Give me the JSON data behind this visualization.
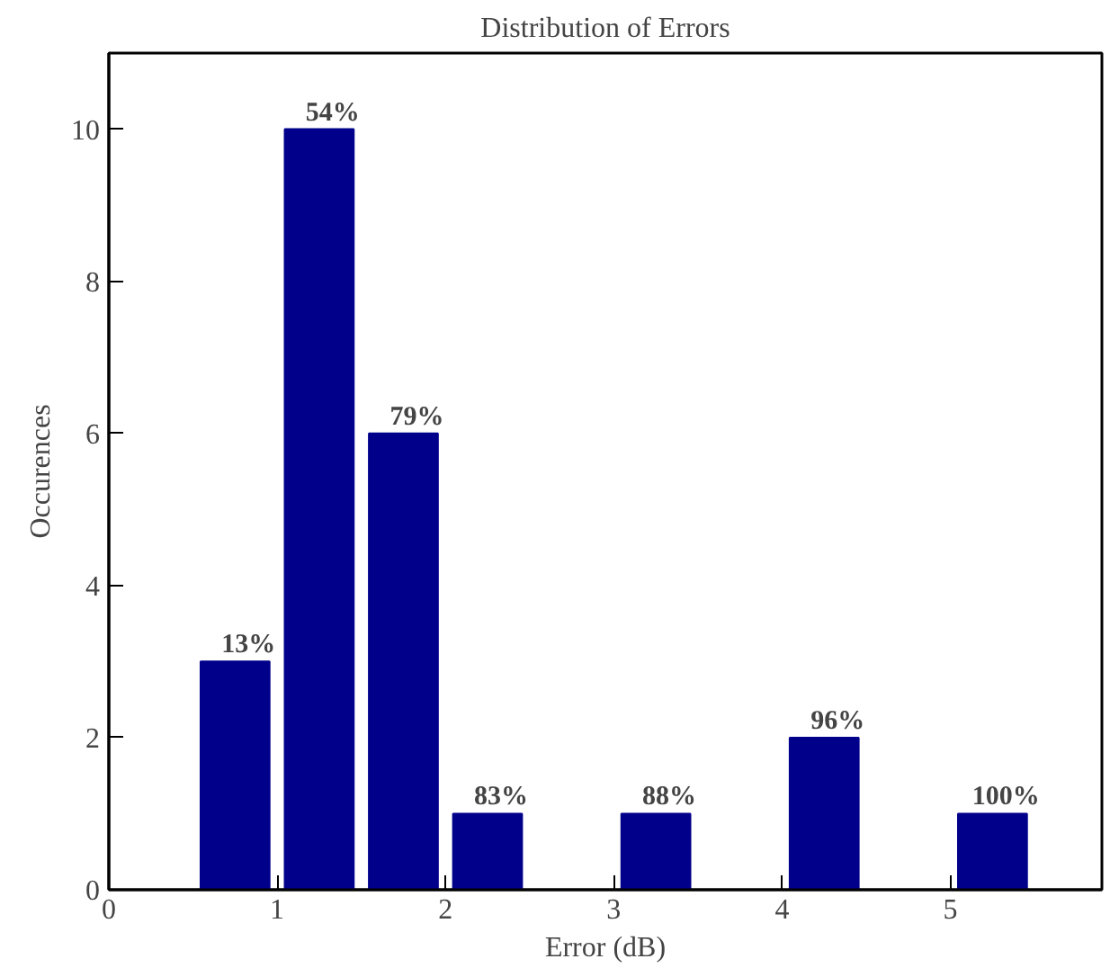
{
  "chart_data": {
    "type": "histogram",
    "title": "Distribution of Errors",
    "xlabel": "Error (dB)",
    "ylabel": "Occurences",
    "bins": [
      0.5,
      1.0,
      1.5,
      2.0,
      2.5,
      3.0,
      3.5,
      4.0,
      4.5,
      5.0,
      5.5
    ],
    "values": [
      3,
      10,
      6,
      1,
      0,
      1,
      0,
      2,
      0,
      1
    ],
    "annotations": [
      {
        "text": "13%",
        "x": 0.75,
        "y": 3
      },
      {
        "text": "54%",
        "x": 1.25,
        "y": 10
      },
      {
        "text": "79%",
        "x": 1.75,
        "y": 6
      },
      {
        "text": "83%",
        "x": 2.25,
        "y": 1
      },
      {
        "text": "88%",
        "x": 3.25,
        "y": 1
      },
      {
        "text": "96%",
        "x": 4.25,
        "y": 2
      },
      {
        "text": "100%",
        "x": 5.25,
        "y": 1
      }
    ],
    "color": "#00008b",
    "xlim": [
      0,
      5.9
    ],
    "xticks": [
      0,
      1,
      2,
      3,
      4,
      5
    ],
    "ylim": [
      0,
      11
    ],
    "yticks": [
      0,
      2,
      4,
      6,
      8,
      10
    ],
    "grid": false
  }
}
